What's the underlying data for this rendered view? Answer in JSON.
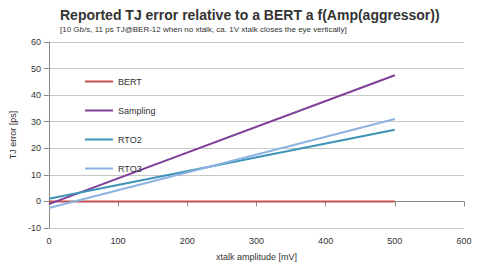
{
  "chart_data": {
    "type": "line",
    "title": "Reported TJ error relative to a BERT a f(Amp(aggressor))",
    "subtitle": "[10 Gb/s, 11 ps TJ@BER-12 when no xtalk, ca. 1V xtalk closes the eye vertically]",
    "x_label": "xtalk amplitude [mV]",
    "y_label": "TJ error [ps]",
    "x": [
      0,
      500
    ],
    "series": [
      {
        "name": "BERT",
        "color": "#c0504d",
        "values": [
          0,
          0
        ]
      },
      {
        "name": "Sampling",
        "color": "#7f3f98",
        "values": [
          -1,
          47.5
        ]
      },
      {
        "name": "RTO2",
        "color": "#3f93b8",
        "values": [
          1,
          27
        ]
      },
      {
        "name": "RTO3",
        "color": "#8db3e2",
        "values": [
          -2.5,
          31
        ]
      }
    ],
    "xlim": [
      0,
      600
    ],
    "xticks": [
      0,
      100,
      200,
      300,
      400,
      500,
      600
    ],
    "ylim": [
      -10,
      60
    ],
    "yticks": [
      -10,
      0,
      10,
      20,
      30,
      40,
      50,
      60
    ],
    "grid": true,
    "legend": "upper left"
  }
}
